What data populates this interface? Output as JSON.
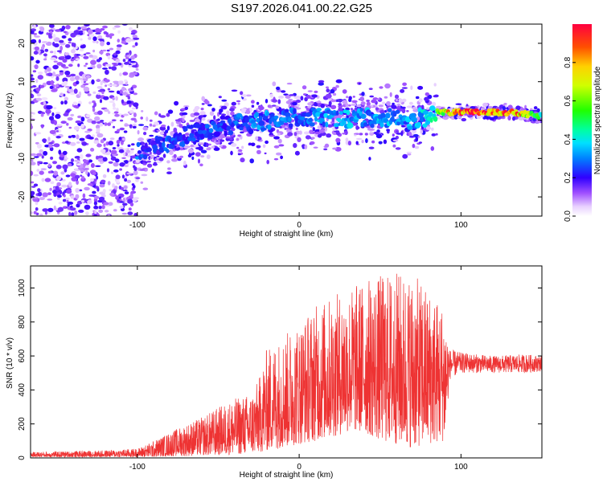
{
  "figure_title": "S197.2026.041.00.22.G25",
  "chart_data": [
    {
      "type": "heatmap",
      "title": "",
      "xlabel": "Height of straight line (km)",
      "ylabel": "Frequency (Hz)",
      "xlim": [
        -166,
        150
      ],
      "ylim": [
        -25,
        25
      ],
      "x_ticks": [
        "-100",
        "0",
        "100"
      ],
      "y_ticks": [
        "-20",
        "-10",
        "0",
        "10",
        "20"
      ],
      "colorbar": {
        "label": "Normalized spectral amplitude",
        "range": [
          0.0,
          1.0
        ],
        "ticks": [
          "0.0",
          "0.2",
          "0.4",
          "0.6",
          "0.8"
        ]
      },
      "ridge": {
        "x": [
          -100,
          -90,
          -80,
          -70,
          -60,
          -50,
          -40,
          -30,
          -20,
          -10,
          0,
          10,
          20,
          30,
          40,
          50,
          60,
          70,
          80,
          85,
          90,
          100,
          110,
          120,
          130,
          140,
          150
        ],
        "freq": [
          -8,
          -7,
          -6,
          -4,
          -3,
          -2,
          -1,
          -1,
          0,
          1,
          0,
          1,
          1,
          0,
          1,
          0,
          1,
          0,
          1,
          2,
          2,
          2,
          2,
          2,
          2,
          1.5,
          1
        ],
        "amplitude": [
          0.28,
          0.22,
          0.28,
          0.25,
          0.26,
          0.28,
          0.27,
          0.3,
          0.32,
          0.3,
          0.3,
          0.32,
          0.34,
          0.35,
          0.33,
          0.36,
          0.34,
          0.33,
          0.4,
          0.55,
          0.75,
          0.92,
          0.95,
          0.95,
          0.9,
          0.75,
          0.5
        ]
      },
      "noise_region_x": [
        -166,
        -100
      ]
    },
    {
      "type": "line",
      "title": "",
      "xlabel": "Height of straight line (km)",
      "ylabel": "SNR (10 * v/v)",
      "xlim": [
        -166,
        150
      ],
      "ylim": [
        0,
        1130
      ],
      "x_ticks": [
        "-100",
        "0",
        "100"
      ],
      "y_ticks": [
        "0",
        "200",
        "400",
        "600",
        "800",
        "1000"
      ],
      "color": "#ee3333",
      "envelope": {
        "x": [
          -166,
          -140,
          -120,
          -100,
          -90,
          -80,
          -70,
          -60,
          -50,
          -40,
          -30,
          -25,
          -20,
          -10,
          0,
          10,
          20,
          30,
          40,
          50,
          60,
          70,
          80,
          90,
          93,
          100,
          120,
          140,
          150
        ],
        "min": [
          5,
          5,
          5,
          5,
          5,
          10,
          10,
          15,
          15,
          20,
          25,
          30,
          40,
          60,
          80,
          100,
          120,
          150,
          150,
          100,
          80,
          60,
          80,
          100,
          460,
          500,
          500,
          500,
          510
        ],
        "max": [
          35,
          40,
          45,
          55,
          100,
          150,
          200,
          240,
          300,
          350,
          380,
          460,
          650,
          720,
          800,
          900,
          950,
          1000,
          1050,
          1080,
          1100,
          1080,
          1000,
          900,
          640,
          620,
          600,
          610,
          600
        ]
      }
    }
  ]
}
